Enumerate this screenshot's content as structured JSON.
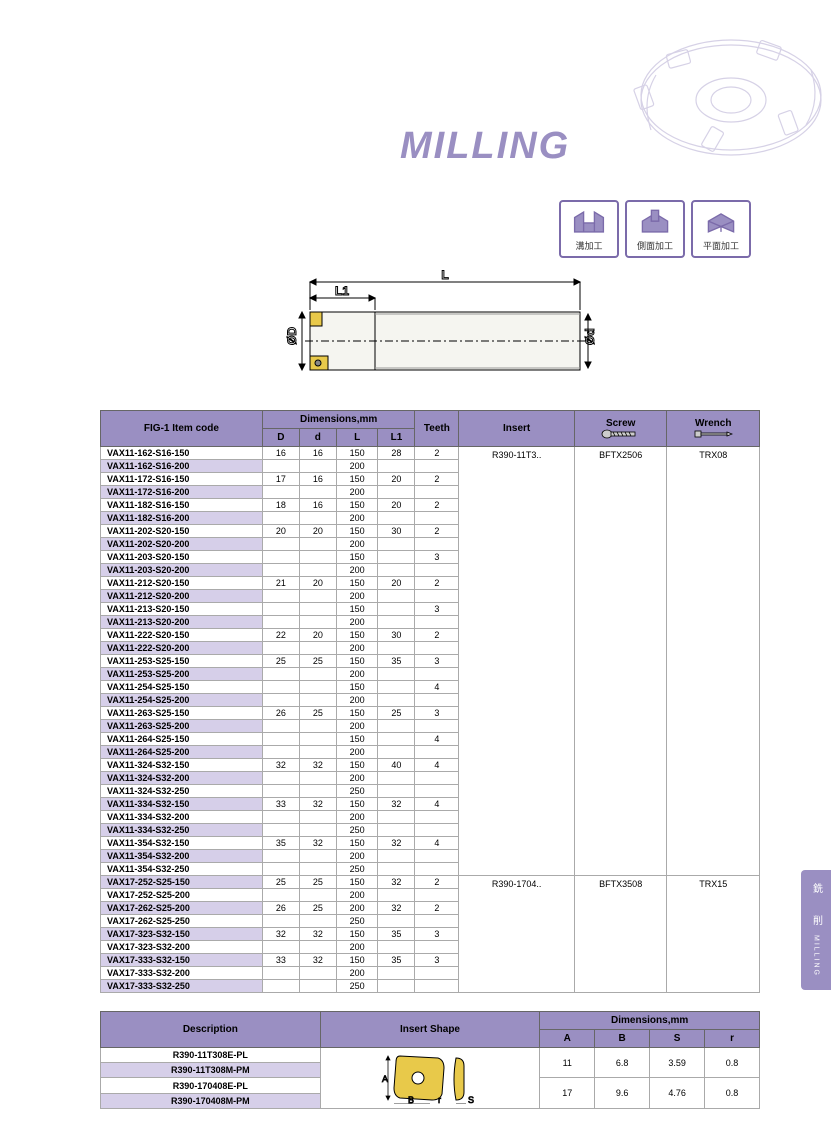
{
  "title": "MILLING",
  "icons": [
    {
      "label": "溝加工"
    },
    {
      "label": "側面加工"
    },
    {
      "label": "平面加工"
    }
  ],
  "diagram": {
    "labels": {
      "L": "L",
      "L1": "L1",
      "D": "ØD",
      "d": "Ød"
    }
  },
  "table1": {
    "headers": {
      "itemcode": "FIG-1 Item code",
      "dimensions": "Dimensions,mm",
      "D": "D",
      "d": "d",
      "L": "L",
      "L1": "L1",
      "teeth": "Teeth",
      "insert": "Insert",
      "screw": "Screw",
      "wrench": "Wrench"
    },
    "colors": {
      "header_bg": "#9a8fc2",
      "alt_row_bg": "#d6cfe9",
      "border": "#666666"
    },
    "groups": [
      {
        "insert": "R390-11T3..",
        "screw": "BFTX2506",
        "wrench": "TRX08",
        "rows": [
          {
            "code": "VAX11-162-S16-150",
            "D": "16",
            "d": "16",
            "L": "150",
            "L1": "28",
            "T": "2",
            "alt": false
          },
          {
            "code": "VAX11-162-S16-200",
            "D": "",
            "d": "",
            "L": "200",
            "L1": "",
            "T": "",
            "alt": true
          },
          {
            "code": "VAX11-172-S16-150",
            "D": "17",
            "d": "16",
            "L": "150",
            "L1": "20",
            "T": "2",
            "alt": false
          },
          {
            "code": "VAX11-172-S16-200",
            "D": "",
            "d": "",
            "L": "200",
            "L1": "",
            "T": "",
            "alt": true
          },
          {
            "code": "VAX11-182-S16-150",
            "D": "18",
            "d": "16",
            "L": "150",
            "L1": "20",
            "T": "2",
            "alt": false
          },
          {
            "code": "VAX11-182-S16-200",
            "D": "",
            "d": "",
            "L": "200",
            "L1": "",
            "T": "",
            "alt": true
          },
          {
            "code": "VAX11-202-S20-150",
            "D": "20",
            "d": "20",
            "L": "150",
            "L1": "30",
            "T": "2",
            "alt": false
          },
          {
            "code": "VAX11-202-S20-200",
            "D": "",
            "d": "",
            "L": "200",
            "L1": "",
            "T": "",
            "alt": true
          },
          {
            "code": "VAX11-203-S20-150",
            "D": "",
            "d": "",
            "L": "150",
            "L1": "",
            "T": "3",
            "alt": false
          },
          {
            "code": "VAX11-203-S20-200",
            "D": "",
            "d": "",
            "L": "200",
            "L1": "",
            "T": "",
            "alt": true
          },
          {
            "code": "VAX11-212-S20-150",
            "D": "21",
            "d": "20",
            "L": "150",
            "L1": "20",
            "T": "2",
            "alt": false
          },
          {
            "code": "VAX11-212-S20-200",
            "D": "",
            "d": "",
            "L": "200",
            "L1": "",
            "T": "",
            "alt": true
          },
          {
            "code": "VAX11-213-S20-150",
            "D": "",
            "d": "",
            "L": "150",
            "L1": "",
            "T": "3",
            "alt": false
          },
          {
            "code": "VAX11-213-S20-200",
            "D": "",
            "d": "",
            "L": "200",
            "L1": "",
            "T": "",
            "alt": true
          },
          {
            "code": "VAX11-222-S20-150",
            "D": "22",
            "d": "20",
            "L": "150",
            "L1": "30",
            "T": "2",
            "alt": false
          },
          {
            "code": "VAX11-222-S20-200",
            "D": "",
            "d": "",
            "L": "200",
            "L1": "",
            "T": "",
            "alt": true
          },
          {
            "code": "VAX11-253-S25-150",
            "D": "25",
            "d": "25",
            "L": "150",
            "L1": "35",
            "T": "3",
            "alt": false
          },
          {
            "code": "VAX11-253-S25-200",
            "D": "",
            "d": "",
            "L": "200",
            "L1": "",
            "T": "",
            "alt": true
          },
          {
            "code": "VAX11-254-S25-150",
            "D": "",
            "d": "",
            "L": "150",
            "L1": "",
            "T": "4",
            "alt": false
          },
          {
            "code": "VAX11-254-S25-200",
            "D": "",
            "d": "",
            "L": "200",
            "L1": "",
            "T": "",
            "alt": true
          },
          {
            "code": "VAX11-263-S25-150",
            "D": "26",
            "d": "25",
            "L": "150",
            "L1": "25",
            "T": "3",
            "alt": false
          },
          {
            "code": "VAX11-263-S25-200",
            "D": "",
            "d": "",
            "L": "200",
            "L1": "",
            "T": "",
            "alt": true
          },
          {
            "code": "VAX11-264-S25-150",
            "D": "",
            "d": "",
            "L": "150",
            "L1": "",
            "T": "4",
            "alt": false
          },
          {
            "code": "VAX11-264-S25-200",
            "D": "",
            "d": "",
            "L": "200",
            "L1": "",
            "T": "",
            "alt": true
          },
          {
            "code": "VAX11-324-S32-150",
            "D": "32",
            "d": "32",
            "L": "150",
            "L1": "40",
            "T": "4",
            "alt": false
          },
          {
            "code": "VAX11-324-S32-200",
            "D": "",
            "d": "",
            "L": "200",
            "L1": "",
            "T": "",
            "alt": true
          },
          {
            "code": "VAX11-324-S32-250",
            "D": "",
            "d": "",
            "L": "250",
            "L1": "",
            "T": "",
            "alt": false
          },
          {
            "code": "VAX11-334-S32-150",
            "D": "33",
            "d": "32",
            "L": "150",
            "L1": "32",
            "T": "4",
            "alt": true
          },
          {
            "code": "VAX11-334-S32-200",
            "D": "",
            "d": "",
            "L": "200",
            "L1": "",
            "T": "",
            "alt": false
          },
          {
            "code": "VAX11-334-S32-250",
            "D": "",
            "d": "",
            "L": "250",
            "L1": "",
            "T": "",
            "alt": true
          },
          {
            "code": "VAX11-354-S32-150",
            "D": "35",
            "d": "32",
            "L": "150",
            "L1": "32",
            "T": "4",
            "alt": false
          },
          {
            "code": "VAX11-354-S32-200",
            "D": "",
            "d": "",
            "L": "200",
            "L1": "",
            "T": "",
            "alt": true
          },
          {
            "code": "VAX11-354-S32-250",
            "D": "",
            "d": "",
            "L": "250",
            "L1": "",
            "T": "",
            "alt": false
          }
        ]
      },
      {
        "insert": "R390-1704..",
        "screw": "BFTX3508",
        "wrench": "TRX15",
        "rows": [
          {
            "code": "VAX17-252-S25-150",
            "D": "25",
            "d": "25",
            "L": "150",
            "L1": "32",
            "T": "2",
            "alt": true
          },
          {
            "code": "VAX17-252-S25-200",
            "D": "",
            "d": "",
            "L": "200",
            "L1": "",
            "T": "",
            "alt": false
          },
          {
            "code": "VAX17-262-S25-200",
            "D": "26",
            "d": "25",
            "L": "200",
            "L1": "32",
            "T": "2",
            "alt": true
          },
          {
            "code": "VAX17-262-S25-250",
            "D": "",
            "d": "",
            "L": "250",
            "L1": "",
            "T": "",
            "alt": false
          },
          {
            "code": "VAX17-323-S32-150",
            "D": "32",
            "d": "32",
            "L": "150",
            "L1": "35",
            "T": "3",
            "alt": true
          },
          {
            "code": "VAX17-323-S32-200",
            "D": "",
            "d": "",
            "L": "200",
            "L1": "",
            "T": "",
            "alt": false
          },
          {
            "code": "VAX17-333-S32-150",
            "D": "33",
            "d": "32",
            "L": "150",
            "L1": "35",
            "T": "3",
            "alt": true
          },
          {
            "code": "VAX17-333-S32-200",
            "D": "",
            "d": "",
            "L": "200",
            "L1": "",
            "T": "",
            "alt": false
          },
          {
            "code": "VAX17-333-S32-250",
            "D": "",
            "d": "",
            "L": "250",
            "L1": "",
            "T": "",
            "alt": true
          }
        ]
      }
    ]
  },
  "table2": {
    "headers": {
      "description": "Description",
      "shape": "Insert Shape",
      "dimensions": "Dimensions,mm",
      "A": "A",
      "B": "B",
      "S": "S",
      "r": "r"
    },
    "shape_labels": {
      "A": "A",
      "B": "B",
      "r": "r",
      "S": "S"
    },
    "groups": [
      {
        "rows": [
          {
            "desc": "R390-11T308E-PL",
            "alt": false
          },
          {
            "desc": "R390-11T308M-PM",
            "alt": true
          }
        ],
        "A": "11",
        "B": "6.8",
        "S": "3.59",
        "r": "0.8"
      },
      {
        "rows": [
          {
            "desc": "R390-170408E-PL",
            "alt": false
          },
          {
            "desc": "R390-170408M-PM",
            "alt": true
          }
        ],
        "A": "17",
        "B": "9.6",
        "S": "4.76",
        "r": "0.8"
      }
    ]
  },
  "side_tab": {
    "cn": "銑　削",
    "en": "MILLING"
  }
}
